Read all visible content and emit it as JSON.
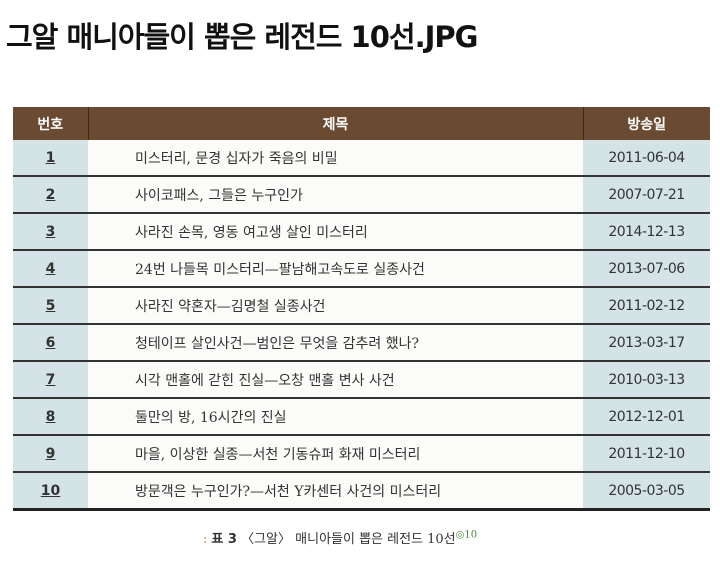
{
  "title": "그알 매니아들이 뽑은 레전드 10선.JPG",
  "table": {
    "headers": [
      "번호",
      "제목",
      "방송일"
    ],
    "rows": [
      {
        "no": "1",
        "title": "미스터리, 문경 십자가 죽음의 비밀",
        "date": "2011-06-04"
      },
      {
        "no": "2",
        "title": "사이코패스, 그들은 누구인가",
        "date": "2007-07-21"
      },
      {
        "no": "3",
        "title": "사라진 손목, 영동 여고생 살인 미스터리",
        "date": "2014-12-13"
      },
      {
        "no": "4",
        "title": "24번 나들목 미스터리—팔남해고속도로 실종사건",
        "date": "2013-07-06"
      },
      {
        "no": "5",
        "title": "사라진 약혼자—김명철 실종사건",
        "date": "2011-02-12"
      },
      {
        "no": "6",
        "title": "청테이프 살인사건—범인은 무엇을 감추려 했나?",
        "date": "2013-03-17"
      },
      {
        "no": "7",
        "title": "시각 맨홀에 갇힌 진실—오창 맨홀 변사 사건",
        "date": "2010-03-13"
      },
      {
        "no": "8",
        "title": "둘만의 방, 16시간의 진실",
        "date": "2012-12-01"
      },
      {
        "no": "9",
        "title": "마을, 이상한 실종—서천 기동슈퍼 화재 미스터리",
        "date": "2011-12-10"
      },
      {
        "no": "10",
        "title": "방문객은 누구인가?—서천 Y카센터 사건의 미스터리",
        "date": "2005-03-05"
      }
    ]
  },
  "caption": {
    "colon": ":",
    "label": "표 3",
    "text": "〈그알〉 매니아들이 뽑은 레전드 10선",
    "sup": "◎10"
  }
}
